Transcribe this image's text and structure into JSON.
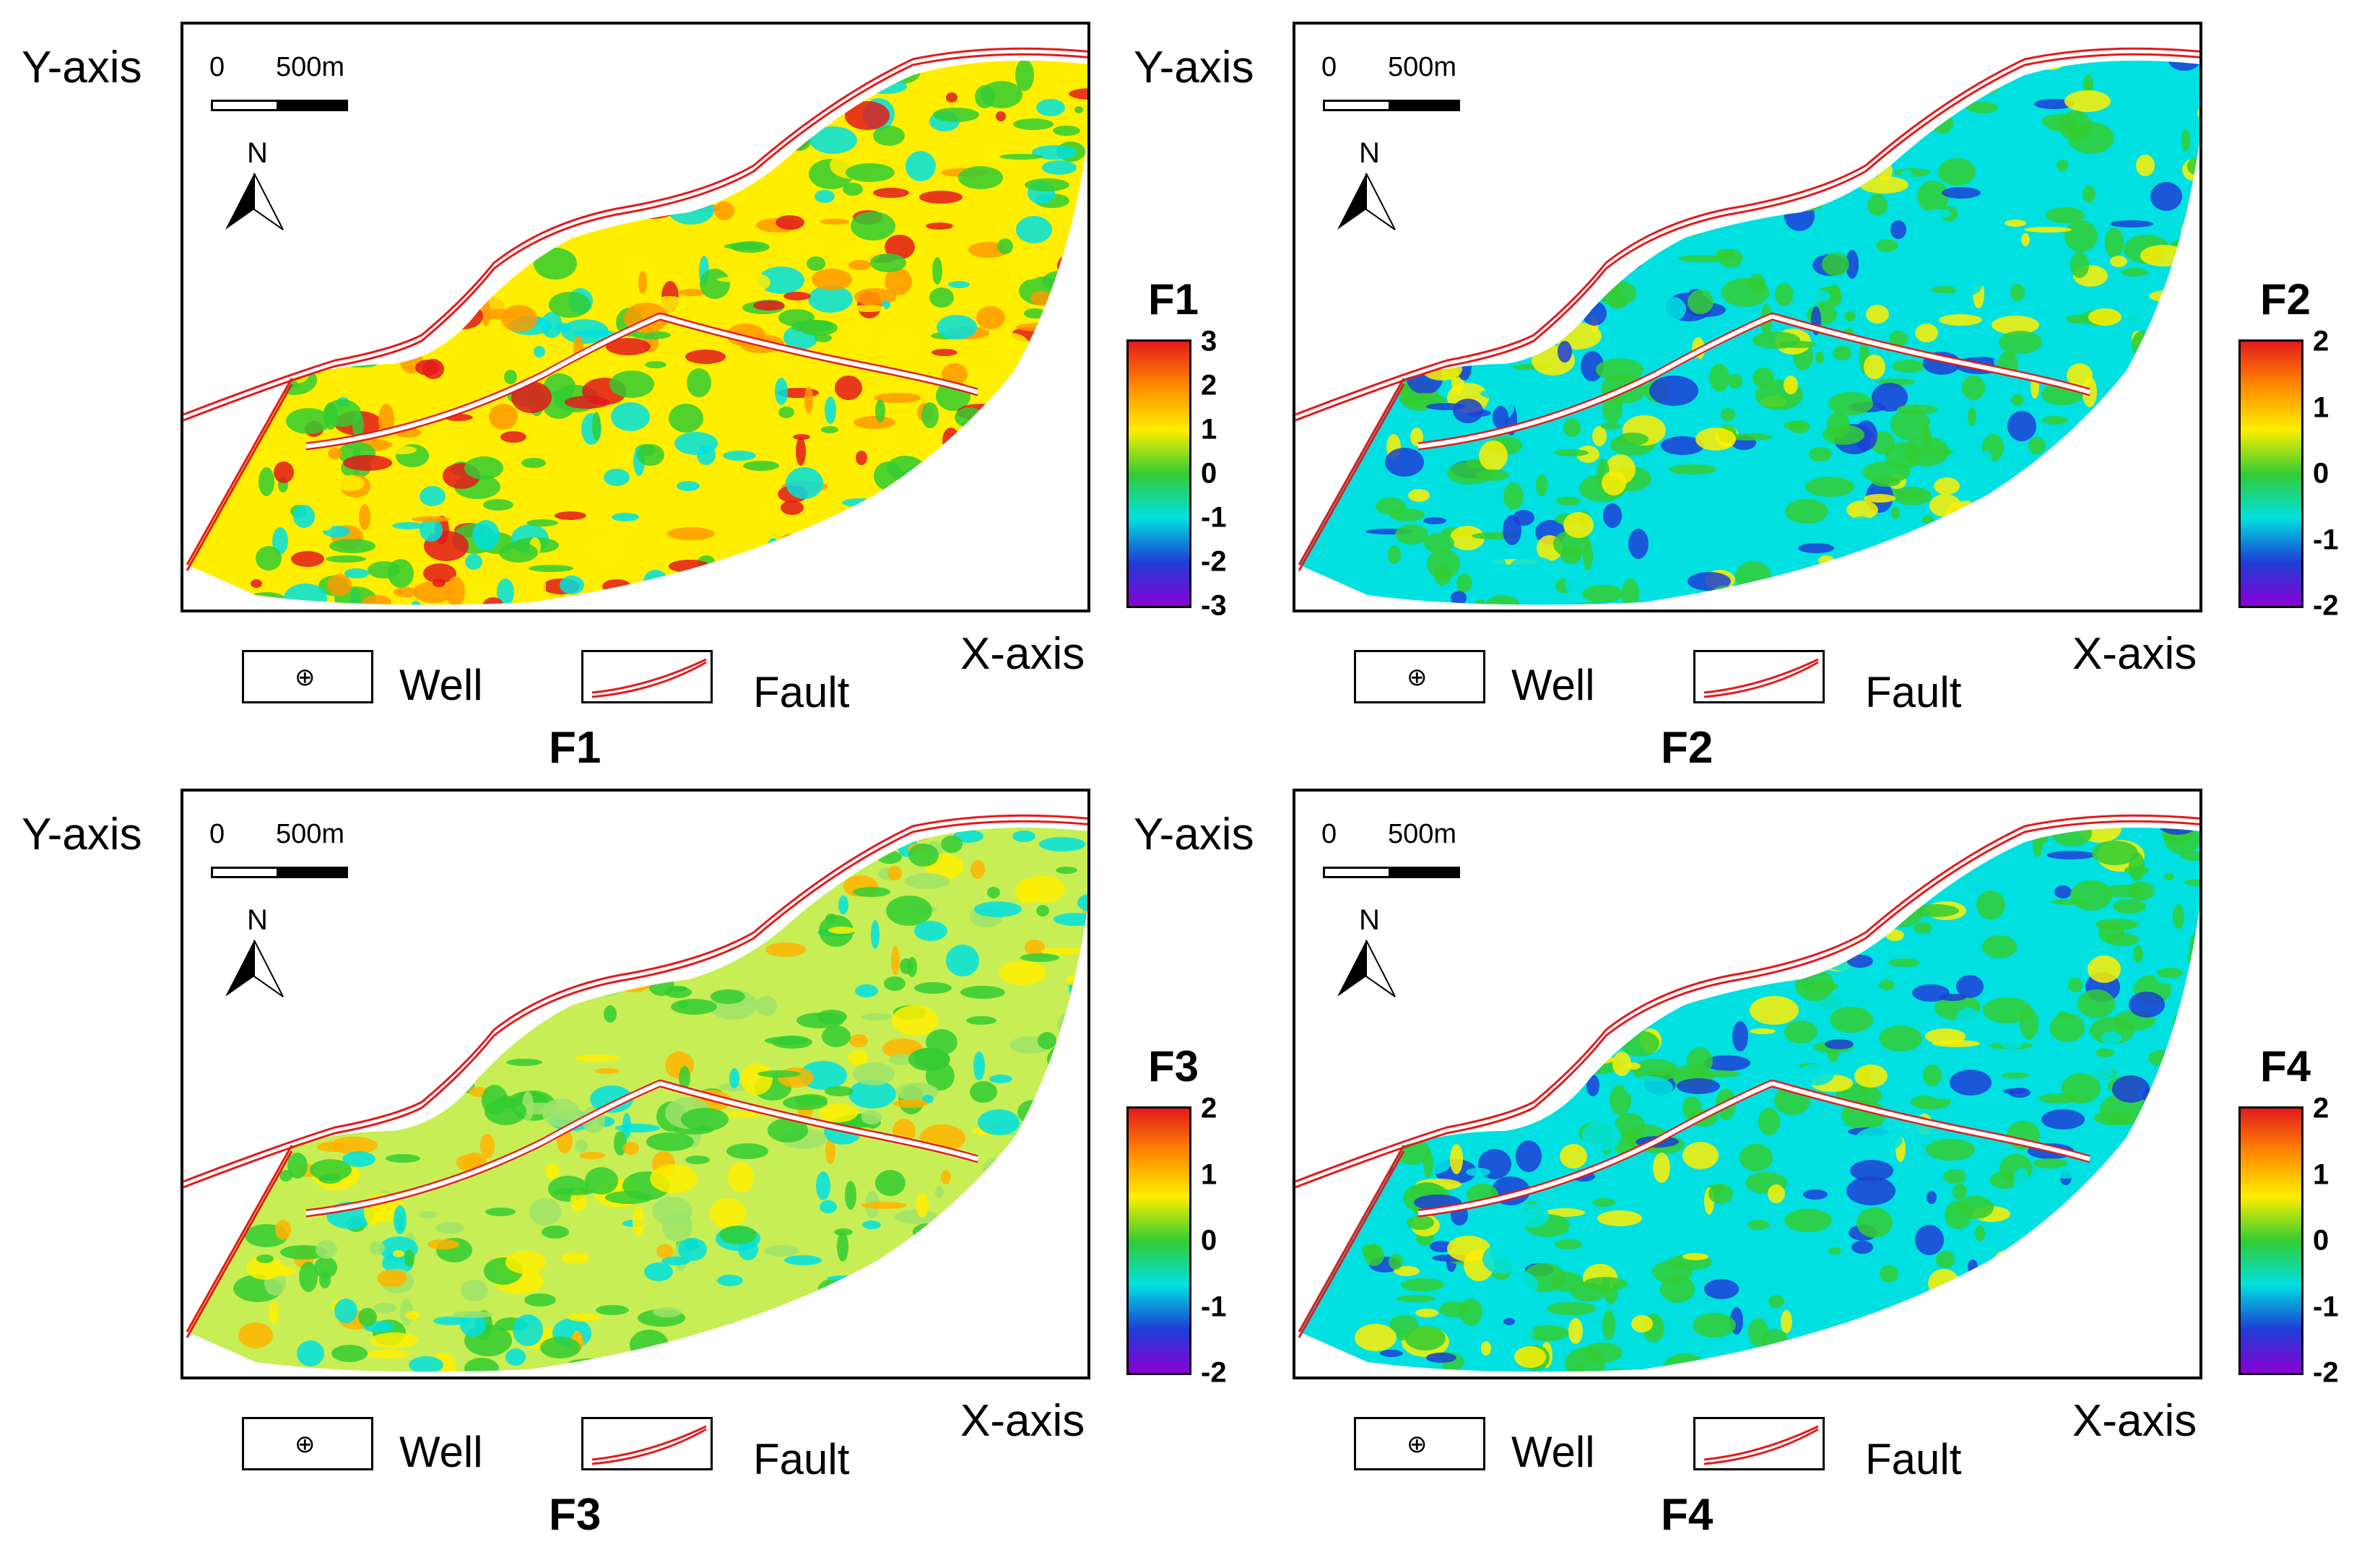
{
  "axes": {
    "y_label": "Y-axis",
    "x_label": "X-axis"
  },
  "scale_bar": {
    "zero": "0",
    "max": "500m"
  },
  "north_arrow": {
    "label": "N"
  },
  "legend": {
    "well_label": "Well",
    "fault_label": "Fault"
  },
  "colors": {
    "high": "#e31a1c",
    "mid_high": "#ffee00",
    "mid": "#33cc33",
    "mid_low": "#00e0e0",
    "low": "#1d3fd6",
    "very_low": "#8b00d6",
    "fault": "#e31a1c"
  },
  "panels": [
    {
      "id": "F1",
      "caption": "F1",
      "colorbar_title": "F1",
      "colorbar_ticks": [
        "3",
        "2",
        "1",
        "0",
        "-1",
        "-2",
        "-3"
      ],
      "dominant": "warm"
    },
    {
      "id": "F2",
      "caption": "F2",
      "colorbar_title": "F2",
      "colorbar_ticks": [
        "2",
        "1",
        "0",
        "-1",
        "-2"
      ],
      "dominant": "cool"
    },
    {
      "id": "F3",
      "caption": "F3",
      "colorbar_title": "F3",
      "colorbar_ticks": [
        "2",
        "1",
        "0",
        "-1",
        "-2"
      ],
      "dominant": "mixed"
    },
    {
      "id": "F4",
      "caption": "F4",
      "colorbar_title": "F4",
      "colorbar_ticks": [
        "2",
        "1",
        "0",
        "-1",
        "-2"
      ],
      "dominant": "cool"
    }
  ]
}
